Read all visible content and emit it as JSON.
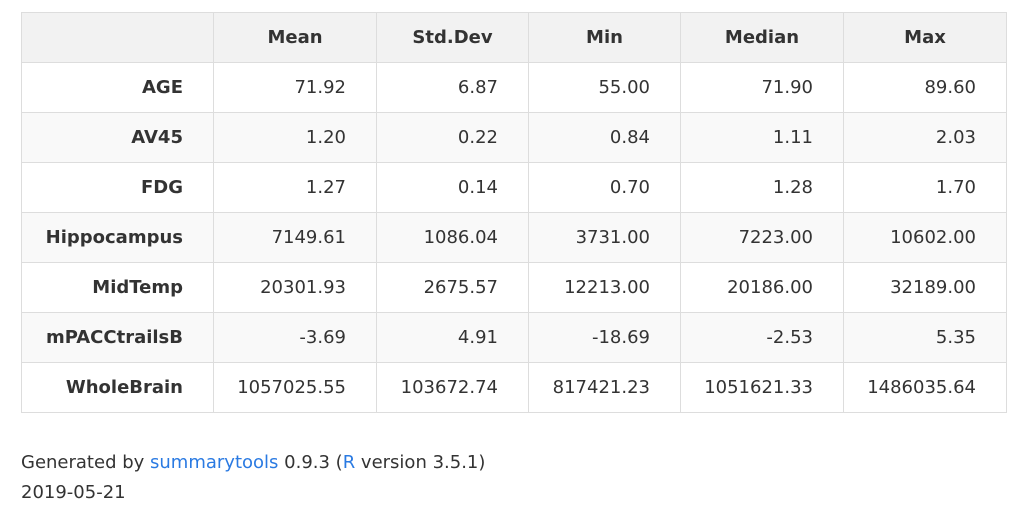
{
  "table": {
    "columns": [
      "",
      "Mean",
      "Std.Dev",
      "Min",
      "Median",
      "Max"
    ],
    "rows": [
      {
        "label": "AGE",
        "values": [
          "71.92",
          "6.87",
          "55.00",
          "71.90",
          "89.60"
        ]
      },
      {
        "label": "AV45",
        "values": [
          "1.20",
          "0.22",
          "0.84",
          "1.11",
          "2.03"
        ]
      },
      {
        "label": "FDG",
        "values": [
          "1.27",
          "0.14",
          "0.70",
          "1.28",
          "1.70"
        ]
      },
      {
        "label": "Hippocampus",
        "values": [
          "7149.61",
          "1086.04",
          "3731.00",
          "7223.00",
          "10602.00"
        ]
      },
      {
        "label": "MidTemp",
        "values": [
          "20301.93",
          "2675.57",
          "12213.00",
          "20186.00",
          "32189.00"
        ]
      },
      {
        "label": "mPACCtrailsB",
        "values": [
          "-3.69",
          "4.91",
          "-18.69",
          "-2.53",
          "5.35"
        ]
      },
      {
        "label": "WholeBrain",
        "values": [
          "1057025.55",
          "103672.74",
          "817421.23",
          "1051621.33",
          "1486035.64"
        ]
      }
    ]
  },
  "footer": {
    "generated_prefix": "Generated by ",
    "package_link": "summarytools",
    "package_version": " 0.9.3 (",
    "r_link": "R",
    "r_version": " version 3.5.1)",
    "date": "2019-05-21"
  },
  "colors": {
    "link": "#2a7ae2",
    "header_bg": "#f2f2f2",
    "stripe_bg": "#f9f9f9",
    "border": "#dddddd",
    "text": "#333333"
  }
}
